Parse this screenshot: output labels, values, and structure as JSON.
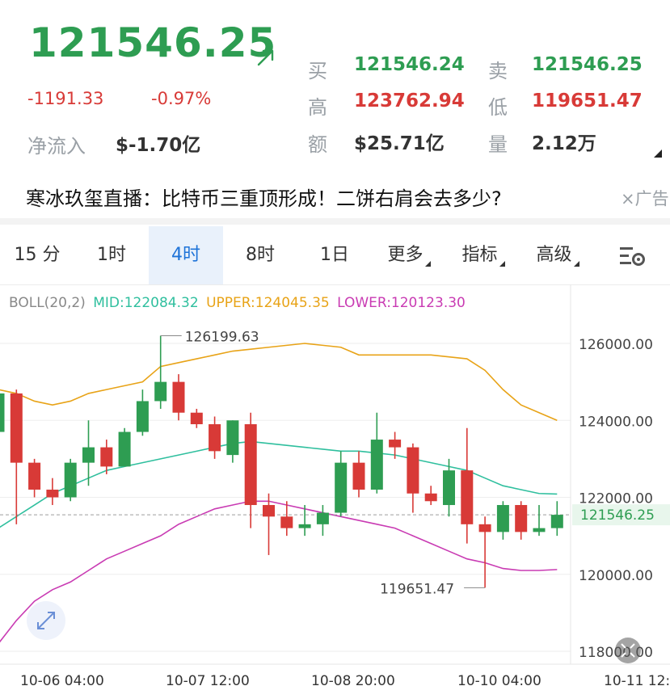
{
  "ticker": {
    "price": "121546.25",
    "change": "-1191.33",
    "change_pct": "-0.97%",
    "buy_label": "买",
    "buy_value": "121546.24",
    "sell_label": "卖",
    "sell_value": "121546.25",
    "high_label": "高",
    "high_value": "123762.94",
    "low_label": "低",
    "low_value": "119651.47",
    "amount_label": "额",
    "amount_value": "$25.71亿",
    "volume_label": "量",
    "volume_value": "2.12万",
    "netflow_label": "净流入",
    "netflow_value": "$-1.70亿",
    "trend_icon": "arrow-up-right-icon"
  },
  "ad": {
    "text": "寒冰玖玺直播：比特币三重顶形成！二饼右肩会去多少?",
    "tag": "×广告"
  },
  "tabs": [
    {
      "label": "15 分"
    },
    {
      "label": "1时"
    },
    {
      "label": "4时"
    },
    {
      "label": "8时"
    },
    {
      "label": "1日"
    },
    {
      "label": "更多"
    },
    {
      "label": "指标"
    },
    {
      "label": "高级"
    }
  ],
  "settings_icon": "chart-settings-icon",
  "expand_icon": "expand-icon",
  "fullscreen_icon": "collapse-icon",
  "indicator": {
    "name": "BOLL(20,2)",
    "mid": "MID:122084.32",
    "upper": "UPPER:124045.35",
    "lower": "LOWER:120123.30"
  },
  "colors": {
    "up": "#2e9d52",
    "down": "#d83a37",
    "mid": "#2fbf9e",
    "upper": "#e8a317",
    "lower": "#c93bb3",
    "accent": "#1e73d8"
  },
  "chart_data": {
    "type": "candlestick",
    "ylim": [
      118000,
      127000
    ],
    "y_ticks": [
      "126000.00",
      "124000.00",
      "122000.00",
      "120000.00",
      "118000.00"
    ],
    "x_ticks": [
      "10-06 04:00",
      "10-07 12:00",
      "10-08 20:00",
      "10-10 04:00",
      "10-11 12:"
    ],
    "current_price_label": "121546.25",
    "current_price": 121546.25,
    "max_label": "126199.63",
    "max_value": 126199.63,
    "min_label": "119651.47",
    "min_value": 119651.47,
    "candles": [
      [
        123700,
        124700,
        122000,
        124700
      ],
      [
        124700,
        124800,
        121300,
        122900
      ],
      [
        122900,
        123000,
        122000,
        122200
      ],
      [
        122200,
        122500,
        121800,
        122000
      ],
      [
        122000,
        123000,
        121900,
        122900
      ],
      [
        122900,
        124000,
        122300,
        123300
      ],
      [
        123300,
        123500,
        122600,
        122800
      ],
      [
        122800,
        123800,
        122800,
        123700
      ],
      [
        123700,
        124800,
        123600,
        124500
      ],
      [
        124500,
        126199.63,
        124300,
        125000
      ],
      [
        125000,
        125200,
        124000,
        124200
      ],
      [
        124200,
        124300,
        123800,
        123900
      ],
      [
        123900,
        124100,
        123000,
        123200
      ],
      [
        123100,
        124000,
        122900,
        124000
      ],
      [
        123900,
        124200,
        121200,
        121800
      ],
      [
        121800,
        122100,
        120500,
        121500
      ],
      [
        121500,
        121900,
        121000,
        121200
      ],
      [
        121200,
        121800,
        121000,
        121300
      ],
      [
        121300,
        121800,
        121000,
        121600
      ],
      [
        121600,
        123200,
        121500,
        122900
      ],
      [
        122900,
        123200,
        122000,
        122200
      ],
      [
        122200,
        124200,
        122100,
        123500
      ],
      [
        123500,
        123700,
        123000,
        123300
      ],
      [
        123300,
        123400,
        121600,
        122100
      ],
      [
        122100,
        122300,
        121800,
        121900
      ],
      [
        121800,
        123000,
        121500,
        122700
      ],
      [
        122700,
        123800,
        120800,
        121300
      ],
      [
        121300,
        121500,
        119651.47,
        121100
      ],
      [
        121100,
        121900,
        120900,
        121800
      ],
      [
        121800,
        121900,
        120900,
        121100
      ],
      [
        121100,
        121800,
        121000,
        121200
      ],
      [
        121200,
        121900,
        121000,
        121546.25
      ]
    ],
    "upper_band": [
      124800,
      124700,
      124500,
      124400,
      124500,
      124700,
      124800,
      124900,
      125000,
      125400,
      125500,
      125600,
      125700,
      125800,
      125850,
      125900,
      125950,
      126000,
      125950,
      125900,
      125700,
      125700,
      125700,
      125700,
      125700,
      125650,
      125600,
      125300,
      124800,
      124400,
      124200,
      124000
    ],
    "mid_band": [
      121200,
      121500,
      121800,
      122100,
      122300,
      122500,
      122700,
      122800,
      122900,
      123000,
      123100,
      123200,
      123300,
      123400,
      123450,
      123400,
      123350,
      123300,
      123250,
      123200,
      123200,
      123150,
      123100,
      123000,
      122900,
      122800,
      122700,
      122500,
      122300,
      122200,
      122100,
      122084.32
    ],
    "lower_band": [
      118200,
      118800,
      119300,
      119600,
      119800,
      120100,
      120400,
      120600,
      120800,
      121000,
      121300,
      121500,
      121700,
      121800,
      121900,
      121900,
      121800,
      121700,
      121600,
      121500,
      121400,
      121300,
      121200,
      121000,
      120800,
      120600,
      120400,
      120300,
      120150,
      120100,
      120100,
      120123.3
    ]
  }
}
